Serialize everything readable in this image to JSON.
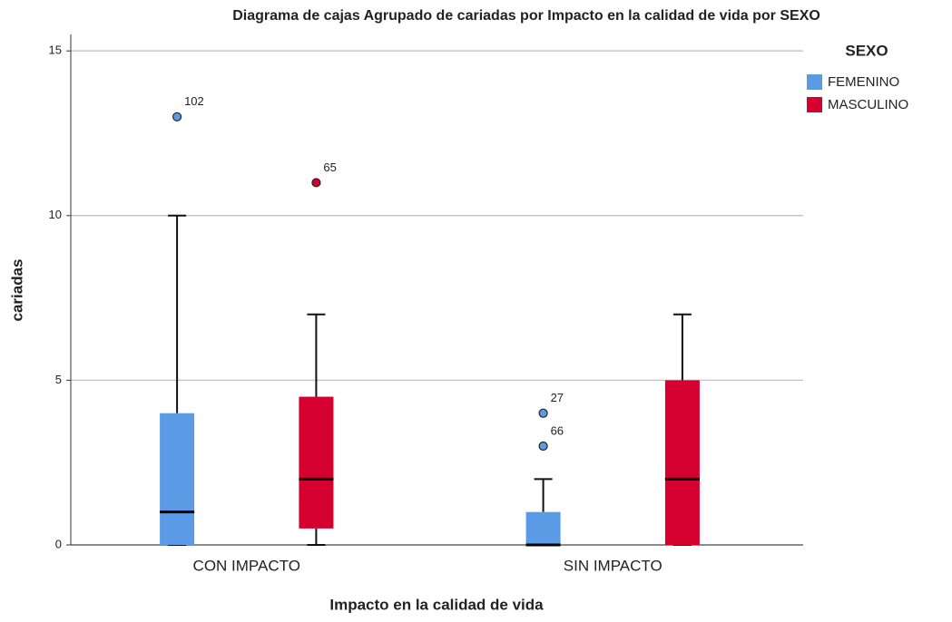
{
  "chart_data": {
    "type": "boxplot",
    "title": "Diagrama de cajas Agrupado de cariadas por Impacto  en la calidad de vida por SEXO",
    "x_label": "Impacto  en la calidad de vida",
    "y_label": "cariadas",
    "legend_title": "SEXO",
    "categories": [
      "CON IMPACTO",
      "SIN IMPACTO"
    ],
    "series": [
      {
        "name": "FEMENINO",
        "color": "#5b9be6",
        "min": [
          0,
          0
        ],
        "q1": [
          0,
          0
        ],
        "median": [
          1,
          0
        ],
        "q3": [
          4,
          1
        ],
        "max": [
          10,
          2
        ],
        "outliers": [
          [
            {
              "value": 13,
              "label": "102"
            }
          ],
          [
            {
              "value": 4,
              "label": "27"
            },
            {
              "value": 3,
              "label": "66"
            }
          ]
        ]
      },
      {
        "name": "MASCULINO",
        "color": "#d5002f",
        "min": [
          0,
          0
        ],
        "q1": [
          0.5,
          0
        ],
        "median": [
          2,
          2
        ],
        "q3": [
          4.5,
          5
        ],
        "max": [
          7,
          7
        ],
        "outliers": [
          [
            {
              "value": 11,
              "label": "65"
            }
          ],
          []
        ]
      }
    ],
    "ylim": [
      0,
      15.5
    ],
    "yticks": [
      0,
      5,
      10,
      15
    ],
    "grid": true,
    "legend": "right"
  }
}
